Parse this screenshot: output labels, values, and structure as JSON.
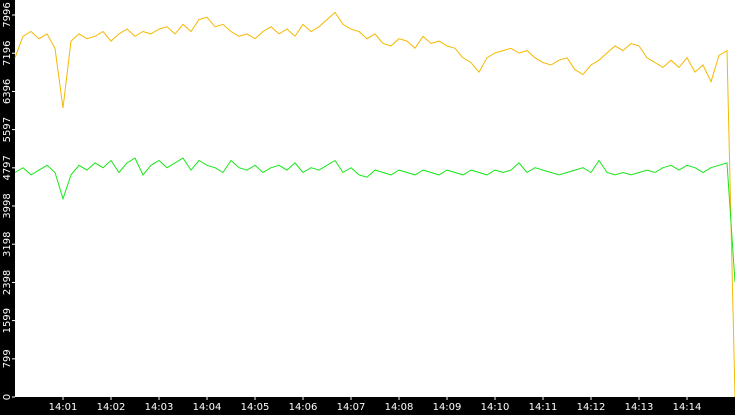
{
  "chart_data": {
    "type": "line",
    "x": [
      0,
      10,
      20,
      30,
      40,
      50,
      60,
      70,
      80,
      90,
      100,
      110,
      120,
      130,
      140,
      150,
      160,
      170,
      180,
      190,
      200,
      210,
      220,
      230,
      240,
      250,
      260,
      270,
      280,
      290,
      300,
      310,
      320,
      330,
      340,
      350,
      360,
      370,
      380,
      390,
      400,
      410,
      420,
      430,
      440,
      450,
      460,
      470,
      480,
      490,
      500,
      510,
      520,
      530,
      540,
      550,
      560,
      570,
      580,
      590,
      600,
      610,
      620,
      630,
      640,
      650,
      660,
      670,
      680,
      690,
      700,
      710,
      720,
      730,
      740,
      750,
      760,
      770,
      780,
      790,
      800,
      810,
      820,
      830,
      840,
      850,
      860,
      870,
      880,
      890,
      900
    ],
    "series": [
      {
        "color": "#f5b800",
        "values": [
          7100,
          7550,
          7650,
          7500,
          7600,
          7300,
          6050,
          7450,
          7600,
          7500,
          7550,
          7650,
          7450,
          7600,
          7700,
          7550,
          7650,
          7600,
          7700,
          7750,
          7600,
          7800,
          7650,
          7900,
          7950,
          7750,
          7800,
          7650,
          7550,
          7600,
          7500,
          7650,
          7750,
          7600,
          7700,
          7550,
          7800,
          7650,
          7750,
          7900,
          8050,
          7800,
          7700,
          7650,
          7500,
          7600,
          7400,
          7350,
          7500,
          7450,
          7300,
          7550,
          7400,
          7450,
          7350,
          7300,
          7100,
          7000,
          6800,
          7100,
          7200,
          7250,
          7300,
          7200,
          7250,
          7100,
          7000,
          6950,
          7050,
          7100,
          6850,
          6750,
          6950,
          7050,
          7200,
          7350,
          7250,
          7400,
          7350,
          7100,
          7000,
          6900,
          7050,
          6900,
          7100,
          6800,
          6950,
          6600,
          7150,
          7250,
          0
        ]
      },
      {
        "color": "#19e619",
        "values": [
          4700,
          4800,
          4650,
          4750,
          4850,
          4700,
          4150,
          4650,
          4850,
          4750,
          4900,
          4800,
          4950,
          4700,
          4900,
          5000,
          4650,
          4850,
          4950,
          4800,
          4900,
          5000,
          4750,
          4950,
          4850,
          4800,
          4700,
          4950,
          4800,
          4750,
          4850,
          4700,
          4800,
          4850,
          4750,
          4900,
          4700,
          4800,
          4750,
          4850,
          4950,
          4700,
          4800,
          4650,
          4600,
          4750,
          4700,
          4650,
          4750,
          4700,
          4650,
          4750,
          4700,
          4650,
          4750,
          4700,
          4650,
          4750,
          4700,
          4650,
          4750,
          4700,
          4750,
          4900,
          4700,
          4800,
          4750,
          4700,
          4650,
          4700,
          4750,
          4800,
          4700,
          4950,
          4700,
          4650,
          4700,
          4650,
          4700,
          4750,
          4700,
          4800,
          4850,
          4750,
          4850,
          4800,
          4700,
          4800,
          4850,
          4900,
          2400
        ]
      }
    ],
    "xlim": [
      0,
      900
    ],
    "xticks": [
      {
        "value": 60,
        "label": "14:01"
      },
      {
        "value": 120,
        "label": "14:02"
      },
      {
        "value": 180,
        "label": "14:03"
      },
      {
        "value": 240,
        "label": "14:04"
      },
      {
        "value": 300,
        "label": "14:05"
      },
      {
        "value": 360,
        "label": "14:06"
      },
      {
        "value": 420,
        "label": "14:07"
      },
      {
        "value": 480,
        "label": "14:08"
      },
      {
        "value": 540,
        "label": "14:09"
      },
      {
        "value": 600,
        "label": "14:10"
      },
      {
        "value": 660,
        "label": "14:11"
      },
      {
        "value": 720,
        "label": "14:12"
      },
      {
        "value": 780,
        "label": "14:13"
      },
      {
        "value": 840,
        "label": "14:14"
      }
    ],
    "ylim": [
      0,
      8310
    ],
    "yticks": [
      0,
      799,
      1599,
      2398,
      3198,
      3998,
      4797,
      5597,
      6396,
      7196,
      7996
    ]
  }
}
